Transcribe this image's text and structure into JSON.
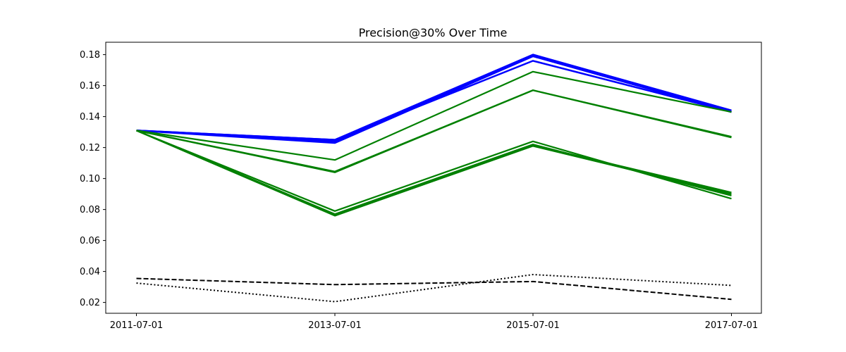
{
  "chart_data": {
    "type": "line",
    "title": "Precision@30% Over Time",
    "xlabel": "",
    "ylabel": "",
    "categories": [
      "2011-07-01",
      "2013-07-01",
      "2015-07-01",
      "2017-07-01"
    ],
    "ylim": [
      0.013,
      0.188
    ],
    "yticks": [
      0.02,
      0.04,
      0.06,
      0.08,
      0.1,
      0.12,
      0.14,
      0.16,
      0.18
    ],
    "ytick_labels": [
      "0.02",
      "0.04",
      "0.06",
      "0.08",
      "0.10",
      "0.12",
      "0.14",
      "0.16",
      "0.18"
    ],
    "grid": false,
    "legend": "none",
    "colors": {
      "blue": "#0000ff",
      "green": "#008000",
      "black": "#000000"
    },
    "series": [
      {
        "color": "blue",
        "style": "solid",
        "values": [
          0.131,
          0.125,
          0.18,
          0.144
        ]
      },
      {
        "color": "blue",
        "style": "solid",
        "values": [
          0.131,
          0.124,
          0.179,
          0.143
        ]
      },
      {
        "color": "blue",
        "style": "solid",
        "values": [
          0.131,
          0.123,
          0.179,
          0.143
        ]
      },
      {
        "color": "blue",
        "style": "solid",
        "values": [
          0.131,
          0.125,
          0.176,
          0.143
        ]
      },
      {
        "color": "green",
        "style": "solid",
        "values": [
          0.131,
          0.112,
          0.169,
          0.143
        ]
      },
      {
        "color": "green",
        "style": "solid",
        "values": [
          0.131,
          0.104,
          0.157,
          0.127
        ]
      },
      {
        "color": "green",
        "style": "solid",
        "values": [
          0.131,
          0.1045,
          0.157,
          0.1265
        ]
      },
      {
        "color": "green",
        "style": "solid",
        "values": [
          0.131,
          0.079,
          0.124,
          0.087
        ]
      },
      {
        "color": "green",
        "style": "solid",
        "values": [
          0.131,
          0.077,
          0.122,
          0.089
        ]
      },
      {
        "color": "green",
        "style": "solid",
        "values": [
          0.131,
          0.076,
          0.121,
          0.09
        ]
      },
      {
        "color": "green",
        "style": "solid",
        "values": [
          0.131,
          0.0765,
          0.1215,
          0.091
        ]
      },
      {
        "color": "black",
        "style": "dashed",
        "values": [
          0.0355,
          0.0315,
          0.0335,
          0.022
        ]
      },
      {
        "color": "black",
        "style": "dotted",
        "values": [
          0.0325,
          0.0205,
          0.038,
          0.031
        ]
      }
    ]
  }
}
